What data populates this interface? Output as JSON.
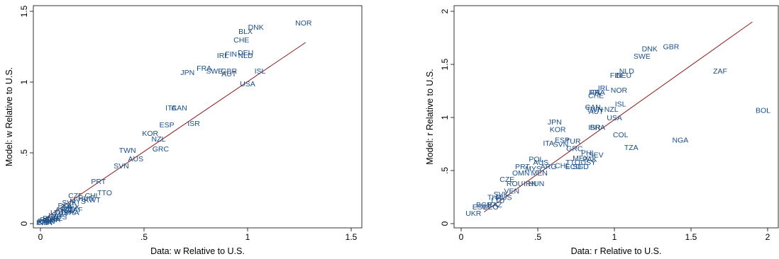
{
  "chart_data": [
    {
      "type": "scatter",
      "xlabel": "Data: w Relative to U.S.",
      "ylabel": "Model: w Relative to U.S.",
      "xlim": [
        0,
        1.5
      ],
      "ylim": [
        0,
        1.5
      ],
      "xticks": [
        0,
        0.5,
        1,
        1.5
      ],
      "yticks": [
        0,
        0.5,
        1,
        1.5
      ],
      "xtick_labels": [
        "0",
        ".5",
        "1",
        "1.5"
      ],
      "ytick_labels": [
        "0",
        ".5",
        "1",
        "1.5"
      ],
      "grid": false,
      "label_color": "#1a4f8a",
      "fit_line_color": "#8b1a1a",
      "fit_line": [
        [
          0,
          0.015
        ],
        [
          1.28,
          1.28
        ]
      ],
      "points": [
        {
          "label": "NOR",
          "x": 1.27,
          "y": 1.42
        },
        {
          "label": "DNK",
          "x": 1.04,
          "y": 1.39
        },
        {
          "label": "BLX",
          "x": 0.99,
          "y": 1.36
        },
        {
          "label": "CHE",
          "x": 0.97,
          "y": 1.3
        },
        {
          "label": "DEU",
          "x": 0.99,
          "y": 1.21
        },
        {
          "label": "FIN",
          "x": 0.92,
          "y": 1.2
        },
        {
          "label": "IRL",
          "x": 0.88,
          "y": 1.19
        },
        {
          "label": "NLD",
          "x": 0.99,
          "y": 1.19
        },
        {
          "label": "FRA",
          "x": 0.79,
          "y": 1.1
        },
        {
          "label": "SWE",
          "x": 0.84,
          "y": 1.08
        },
        {
          "label": "GBR",
          "x": 0.91,
          "y": 1.08
        },
        {
          "label": "JPN",
          "x": 0.71,
          "y": 1.07
        },
        {
          "label": "AUT",
          "x": 0.91,
          "y": 1.06
        },
        {
          "label": "ISL",
          "x": 1.06,
          "y": 1.08
        },
        {
          "label": "USA",
          "x": 1.0,
          "y": 0.99
        },
        {
          "label": "ITA",
          "x": 0.63,
          "y": 0.82
        },
        {
          "label": "CAN",
          "x": 0.67,
          "y": 0.82
        },
        {
          "label": "ESP",
          "x": 0.61,
          "y": 0.7
        },
        {
          "label": "ISR",
          "x": 0.74,
          "y": 0.71
        },
        {
          "label": "KOR",
          "x": 0.53,
          "y": 0.64
        },
        {
          "label": "NZL",
          "x": 0.57,
          "y": 0.6
        },
        {
          "label": "TWN",
          "x": 0.42,
          "y": 0.52
        },
        {
          "label": "GRC",
          "x": 0.58,
          "y": 0.53
        },
        {
          "label": "AUS",
          "x": 0.46,
          "y": 0.46
        },
        {
          "label": "SVN",
          "x": 0.39,
          "y": 0.41
        },
        {
          "label": "PRT",
          "x": 0.28,
          "y": 0.3
        },
        {
          "label": "TTO",
          "x": 0.31,
          "y": 0.22
        },
        {
          "label": "CZE",
          "x": 0.17,
          "y": 0.2
        },
        {
          "label": "CHL",
          "x": 0.25,
          "y": 0.2
        },
        {
          "label": "HUN",
          "x": 0.22,
          "y": 0.18
        },
        {
          "label": "KWT",
          "x": 0.25,
          "y": 0.17
        },
        {
          "label": "SVK",
          "x": 0.14,
          "y": 0.15
        },
        {
          "label": "MYS",
          "x": 0.18,
          "y": 0.16
        },
        {
          "label": "POL",
          "x": 0.12,
          "y": 0.13
        },
        {
          "label": "URY",
          "x": 0.14,
          "y": 0.11
        },
        {
          "label": "MEX",
          "x": 0.15,
          "y": 0.12
        },
        {
          "label": "TUR",
          "x": 0.13,
          "y": 0.09
        },
        {
          "label": "BRA",
          "x": 0.15,
          "y": 0.08
        },
        {
          "label": "ARG",
          "x": 0.11,
          "y": 0.1
        },
        {
          "label": "ZAF",
          "x": 0.17,
          "y": 0.1
        },
        {
          "label": "EST",
          "x": 0.1,
          "y": 0.07
        },
        {
          "label": "LTU",
          "x": 0.08,
          "y": 0.08
        },
        {
          "label": "LVA",
          "x": 0.07,
          "y": 0.06
        },
        {
          "label": "RUS",
          "x": 0.09,
          "y": 0.05
        },
        {
          "label": "COL",
          "x": 0.07,
          "y": 0.04
        },
        {
          "label": "BGR",
          "x": 0.05,
          "y": 0.04
        },
        {
          "label": "ROM",
          "x": 0.04,
          "y": 0.03
        },
        {
          "label": "UKR",
          "x": 0.03,
          "y": 0.02
        },
        {
          "label": "THA",
          "x": 0.06,
          "y": 0.03
        },
        {
          "label": "PHL",
          "x": 0.02,
          "y": 0.02
        },
        {
          "label": "IDN",
          "x": 0.04,
          "y": 0.02
        },
        {
          "label": "IND",
          "x": 0.01,
          "y": 0.01
        },
        {
          "label": "CHN",
          "x": 0.02,
          "y": 0.01
        }
      ]
    },
    {
      "type": "scatter",
      "xlabel": "Data: r Relative to U.S.",
      "ylabel": "Model: r Relative to U.S.",
      "xlim": [
        0,
        2
      ],
      "ylim": [
        0,
        2
      ],
      "xticks": [
        0,
        0.5,
        1,
        1.5,
        2
      ],
      "yticks": [
        0,
        0.5,
        1,
        1.5,
        2
      ],
      "xtick_labels": [
        "0",
        ".5",
        "1",
        "1.5",
        "2"
      ],
      "ytick_labels": [
        "0",
        ".5",
        "1",
        "1.5",
        "2"
      ],
      "grid": false,
      "label_color": "#1a4f8a",
      "fit_line_color": "#8b1a1a",
      "fit_line": [
        [
          0.15,
          0.11
        ],
        [
          1.9,
          1.9
        ]
      ],
      "points": [
        {
          "label": "GBR",
          "x": 1.37,
          "y": 1.67
        },
        {
          "label": "DNK",
          "x": 1.23,
          "y": 1.65
        },
        {
          "label": "SWE",
          "x": 1.18,
          "y": 1.58
        },
        {
          "label": "ZAF",
          "x": 1.69,
          "y": 1.44
        },
        {
          "label": "NLD",
          "x": 1.08,
          "y": 1.44
        },
        {
          "label": "FIN",
          "x": 1.01,
          "y": 1.4
        },
        {
          "label": "DEU",
          "x": 1.06,
          "y": 1.4
        },
        {
          "label": "IRL",
          "x": 0.93,
          "y": 1.28
        },
        {
          "label": "NOR",
          "x": 1.03,
          "y": 1.26
        },
        {
          "label": "ITA",
          "x": 0.87,
          "y": 1.24
        },
        {
          "label": "FRA",
          "x": 0.89,
          "y": 1.24
        },
        {
          "label": "CHE",
          "x": 0.88,
          "y": 1.21
        },
        {
          "label": "ISL",
          "x": 1.04,
          "y": 1.13
        },
        {
          "label": "CAN",
          "x": 0.86,
          "y": 1.1
        },
        {
          "label": "TWN",
          "x": 0.87,
          "y": 1.08
        },
        {
          "label": "NZL",
          "x": 0.98,
          "y": 1.08
        },
        {
          "label": "AUT",
          "x": 0.88,
          "y": 1.06
        },
        {
          "label": "BOL",
          "x": 1.97,
          "y": 1.07
        },
        {
          "label": "USA",
          "x": 1.0,
          "y": 1.0
        },
        {
          "label": "JPN",
          "x": 0.61,
          "y": 0.96
        },
        {
          "label": "KOR",
          "x": 0.63,
          "y": 0.89
        },
        {
          "label": "ISR",
          "x": 0.87,
          "y": 0.91
        },
        {
          "label": "BRA",
          "x": 0.89,
          "y": 0.91
        },
        {
          "label": "COL",
          "x": 1.04,
          "y": 0.84
        },
        {
          "label": "NGA",
          "x": 1.43,
          "y": 0.79
        },
        {
          "label": "TZA",
          "x": 1.11,
          "y": 0.72
        },
        {
          "label": "ESP",
          "x": 0.66,
          "y": 0.79
        },
        {
          "label": "TUR",
          "x": 0.73,
          "y": 0.78
        },
        {
          "label": "ITA",
          "x": 0.57,
          "y": 0.76
        },
        {
          "label": "SVN",
          "x": 0.65,
          "y": 0.75
        },
        {
          "label": "GRC",
          "x": 0.74,
          "y": 0.71
        },
        {
          "label": "PHL",
          "x": 0.83,
          "y": 0.67
        },
        {
          "label": "SEV",
          "x": 0.88,
          "y": 0.65
        },
        {
          "label": "MEX",
          "x": 0.78,
          "y": 0.62
        },
        {
          "label": "PAK",
          "x": 0.84,
          "y": 0.61
        },
        {
          "label": "AUS",
          "x": 0.52,
          "y": 0.58
        },
        {
          "label": "POL",
          "x": 0.49,
          "y": 0.61
        },
        {
          "label": "TTO",
          "x": 0.73,
          "y": 0.58
        },
        {
          "label": "USY",
          "x": 0.83,
          "y": 0.58
        },
        {
          "label": "CHL",
          "x": 0.66,
          "y": 0.55
        },
        {
          "label": "ARG",
          "x": 0.57,
          "y": 0.54
        },
        {
          "label": "ECU",
          "x": 0.73,
          "y": 0.54
        },
        {
          "label": "SGD",
          "x": 0.78,
          "y": 0.54
        },
        {
          "label": "PRT",
          "x": 0.4,
          "y": 0.54
        },
        {
          "label": "MYS",
          "x": 0.47,
          "y": 0.52
        },
        {
          "label": "OMN",
          "x": 0.39,
          "y": 0.48
        },
        {
          "label": "MEN",
          "x": 0.51,
          "y": 0.48
        },
        {
          "label": "CZE",
          "x": 0.3,
          "y": 0.42
        },
        {
          "label": "ROU",
          "x": 0.35,
          "y": 0.38
        },
        {
          "label": "IRN",
          "x": 0.45,
          "y": 0.38
        },
        {
          "label": "HUN",
          "x": 0.49,
          "y": 0.38
        },
        {
          "label": "VEN",
          "x": 0.33,
          "y": 0.31
        },
        {
          "label": "SVK",
          "x": 0.26,
          "y": 0.28
        },
        {
          "label": "THA",
          "x": 0.22,
          "y": 0.25
        },
        {
          "label": "RUS",
          "x": 0.28,
          "y": 0.25
        },
        {
          "label": "LTU",
          "x": 0.24,
          "y": 0.22
        },
        {
          "label": "BGR",
          "x": 0.15,
          "y": 0.18
        },
        {
          "label": "KAZ",
          "x": 0.22,
          "y": 0.18
        },
        {
          "label": "EST",
          "x": 0.12,
          "y": 0.16
        },
        {
          "label": "GEO",
          "x": 0.19,
          "y": 0.16
        },
        {
          "label": "UKR",
          "x": 0.08,
          "y": 0.1
        }
      ]
    }
  ]
}
